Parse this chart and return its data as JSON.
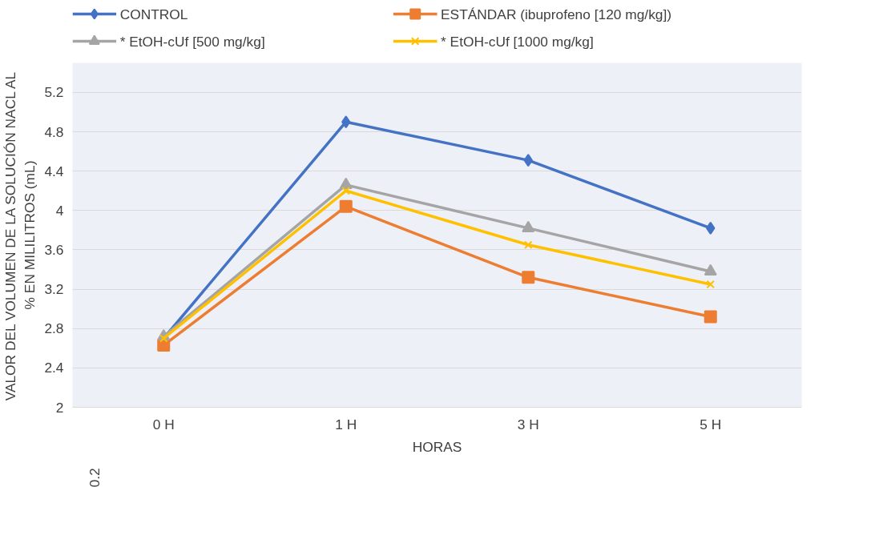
{
  "chart_data": {
    "type": "line",
    "xlabel": "HORAS",
    "ylabel": "VALOR DEL VOLUMEN DE LA SOLUCIÓN NACL AL\n% EN MILILITROS (mL)",
    "annotations": [
      "0.2"
    ],
    "categories": [
      "0 H",
      "1 H",
      "3 H",
      "5 H"
    ],
    "series": [
      {
        "name": "CONTROL",
        "color": "#4472c4",
        "marker": "diamond",
        "values": [
          2.7,
          4.9,
          4.51,
          3.82
        ]
      },
      {
        "name": "ESTÁNDAR (ibuprofeno [120 mg/kg])",
        "color": "#ed7d31",
        "marker": "square",
        "values": [
          2.63,
          4.04,
          3.32,
          2.92
        ]
      },
      {
        "name": "* EtOH-cUf [500 mg/kg]",
        "color": "#a5a5a5",
        "marker": "triangle",
        "values": [
          2.72,
          4.26,
          3.82,
          3.38
        ]
      },
      {
        "name": "* EtOH-cUf [1000 mg/kg]",
        "color": "#ffc000",
        "marker": "cross",
        "values": [
          2.7,
          4.2,
          3.65,
          3.25
        ]
      }
    ],
    "ylim": [
      2,
      5.5
    ],
    "yticks": [
      2,
      2.4,
      2.8,
      3.2,
      3.6,
      4,
      4.4,
      4.8,
      5.2
    ],
    "grid": "y",
    "legend": "top"
  }
}
